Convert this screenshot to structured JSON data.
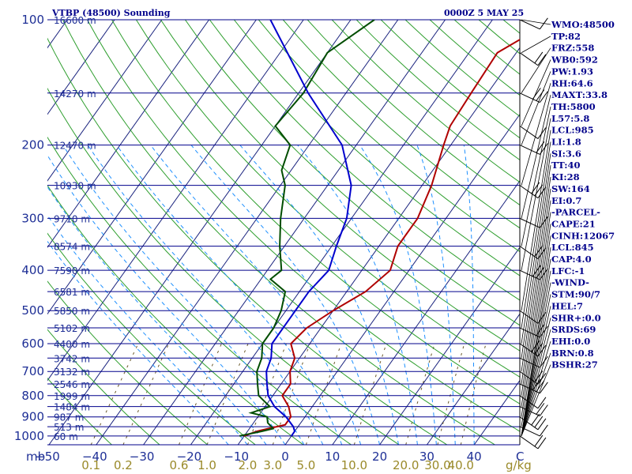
{
  "header": {
    "title": "VTBP (48500) Sounding",
    "time": "0000Z  5 MAY 25"
  },
  "units": {
    "pressure": "mb",
    "mixing_ratio": "g/kg",
    "temp_end": "C"
  },
  "params": [
    "WMO:48500",
    "TP:82",
    "FRZ:558",
    "WB0:592",
    "PW:1.93",
    "RH:64.6",
    "MAXT:33.8",
    "TH:5800",
    "L57:5.8",
    "LCL:985",
    "LI:1.8",
    "SI:3.6",
    "TT:40",
    "KI:28",
    "SW:164",
    "EI:0.7",
    "-PARCEL-",
    "CAPE:21",
    "CINH:12067",
    "LCL:845",
    "CAP:4.0",
    "LFC:-1",
    "-WIND-",
    "STM:90/7",
    "HEL:7",
    "SHR+:0.0",
    "SRDS:69",
    "EHI:0.0",
    "BRN:0.8",
    "BSHR:27"
  ],
  "colors": {
    "isobar": "#00008b",
    "isotherm": "#1a237e",
    "dry_adiabat": "#2e9e2e",
    "moist_adiabat": "#1e90ff",
    "mixing_ratio": "#6b5a2a",
    "temperature": "#b00000",
    "dewpoint": "#004d00",
    "parcel": "#0000cd",
    "text": "#00008b"
  },
  "chart_data": {
    "type": "line",
    "title": "VTBP (48500) Sounding",
    "xlabel": "C",
    "ylabel": "mb",
    "log_pressure_axis": true,
    "skewed_temperature_axis": true,
    "pressure_levels": [
      100,
      200,
      300,
      400,
      500,
      600,
      700,
      800,
      900,
      1000
    ],
    "height_labels": [
      {
        "p": 100,
        "label": "16600 m"
      },
      {
        "p": 150,
        "label": "14270 m"
      },
      {
        "p": 200,
        "label": "12470 m"
      },
      {
        "p": 250,
        "label": "10930 m"
      },
      {
        "p": 300,
        "label": "9710 m"
      },
      {
        "p": 350,
        "label": "8574 m"
      },
      {
        "p": 400,
        "label": "7590 m"
      },
      {
        "p": 450,
        "label": "6581 m"
      },
      {
        "p": 500,
        "label": "5850 m"
      },
      {
        "p": 550,
        "label": "5102 m"
      },
      {
        "p": 600,
        "label": "4400 m"
      },
      {
        "p": 650,
        "label": "3742 m"
      },
      {
        "p": 700,
        "label": "3132 m"
      },
      {
        "p": 750,
        "label": "2546 m"
      },
      {
        "p": 800,
        "label": "1999 m"
      },
      {
        "p": 850,
        "label": "1484 m"
      },
      {
        "p": 900,
        "label": "987 m"
      },
      {
        "p": 950,
        "label": "513 m"
      },
      {
        "p": 1000,
        "label": "60 m"
      }
    ],
    "temperature_ticks": [
      -50,
      -40,
      -30,
      -20,
      -10,
      0,
      10,
      20,
      30,
      40
    ],
    "temperature_tick_labels": [
      "−50",
      "−40",
      "−30",
      "−20",
      "−10",
      "0",
      "10",
      "20",
      "30",
      "40"
    ],
    "mixing_ratio_labels": [
      "0.1",
      "0.2",
      "0.6",
      "1.0",
      "2.0",
      "3.0",
      "5.0",
      "10.0",
      "20.0",
      "30.0",
      "40.0"
    ],
    "series": [
      {
        "name": "temperature",
        "points": [
          [
            100,
            -7
          ],
          [
            120,
            -14
          ],
          [
            150,
            -13.5
          ],
          [
            180,
            -13
          ],
          [
            200,
            -11.5
          ],
          [
            250,
            -8
          ],
          [
            300,
            -6
          ],
          [
            350,
            -6
          ],
          [
            400,
            -4
          ],
          [
            450,
            -6
          ],
          [
            500,
            -10
          ],
          [
            550,
            -13
          ],
          [
            600,
            -14
          ],
          [
            650,
            -11
          ],
          [
            700,
            -10
          ],
          [
            750,
            -8
          ],
          [
            800,
            -8
          ],
          [
            850,
            -5
          ],
          [
            900,
            -3
          ],
          [
            940,
            -3
          ],
          [
            960,
            -6
          ],
          [
            975,
            -8
          ],
          [
            1000,
            -10
          ]
        ]
      },
      {
        "name": "dewpoint",
        "points": [
          [
            100,
            -45
          ],
          [
            120,
            -50
          ],
          [
            150,
            -49
          ],
          [
            180,
            -50
          ],
          [
            200,
            -44
          ],
          [
            230,
            -42
          ],
          [
            250,
            -39
          ],
          [
            300,
            -35
          ],
          [
            350,
            -31
          ],
          [
            400,
            -27
          ],
          [
            420,
            -28
          ],
          [
            450,
            -23
          ],
          [
            500,
            -21
          ],
          [
            550,
            -20
          ],
          [
            600,
            -20
          ],
          [
            650,
            -18
          ],
          [
            700,
            -17
          ],
          [
            750,
            -15
          ],
          [
            800,
            -13
          ],
          [
            850,
            -9
          ],
          [
            880,
            -12
          ],
          [
            900,
            -8
          ],
          [
            930,
            -7
          ],
          [
            960,
            -5
          ],
          [
            975,
            -7
          ],
          [
            1000,
            -11
          ]
        ]
      },
      {
        "name": "parcel",
        "points": [
          [
            100,
            -67
          ],
          [
            150,
            -48
          ],
          [
            200,
            -33
          ],
          [
            250,
            -25
          ],
          [
            300,
            -21
          ],
          [
            350,
            -19
          ],
          [
            400,
            -17
          ],
          [
            450,
            -18
          ],
          [
            500,
            -18
          ],
          [
            550,
            -18
          ],
          [
            600,
            -18
          ],
          [
            650,
            -16
          ],
          [
            700,
            -15
          ],
          [
            750,
            -13
          ],
          [
            800,
            -11
          ],
          [
            850,
            -8
          ],
          [
            900,
            -4
          ],
          [
            950,
            -1
          ],
          [
            975,
            0
          ],
          [
            1000,
            0
          ]
        ]
      }
    ],
    "wind_barb_levels": [
      100,
      120,
      150,
      180,
      200,
      250,
      300,
      350,
      400,
      500,
      550,
      600,
      650,
      700,
      750,
      800,
      850,
      900,
      950,
      1000
    ]
  }
}
